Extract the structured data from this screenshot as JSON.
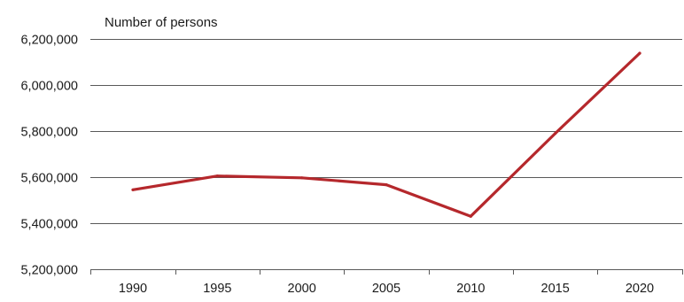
{
  "chart_data": {
    "type": "line",
    "title": "",
    "xlabel": "",
    "ylabel": "Number of persons",
    "x": [
      1990,
      1995,
      2000,
      2005,
      2010,
      2015,
      2020
    ],
    "x_tick_labels": [
      "1990",
      "1995",
      "2000",
      "2005",
      "2010",
      "2015",
      "2020"
    ],
    "ylim": [
      5200000,
      6200000
    ],
    "y_ticks": [
      5200000,
      5400000,
      5600000,
      5800000,
      6000000,
      6200000
    ],
    "y_tick_labels": [
      "5,200,000",
      "5,400,000",
      "5,600,000",
      "5,800,000",
      "6,000,000",
      "6,200,000"
    ],
    "series": [
      {
        "values": [
          5545000,
          5605000,
          5597000,
          5567000,
          5430000,
          5790000,
          6138000
        ]
      }
    ],
    "grid": true,
    "legend": "none",
    "colors": {
      "line": "#b5282c",
      "grid": "#595959",
      "axis": "#595959"
    }
  }
}
